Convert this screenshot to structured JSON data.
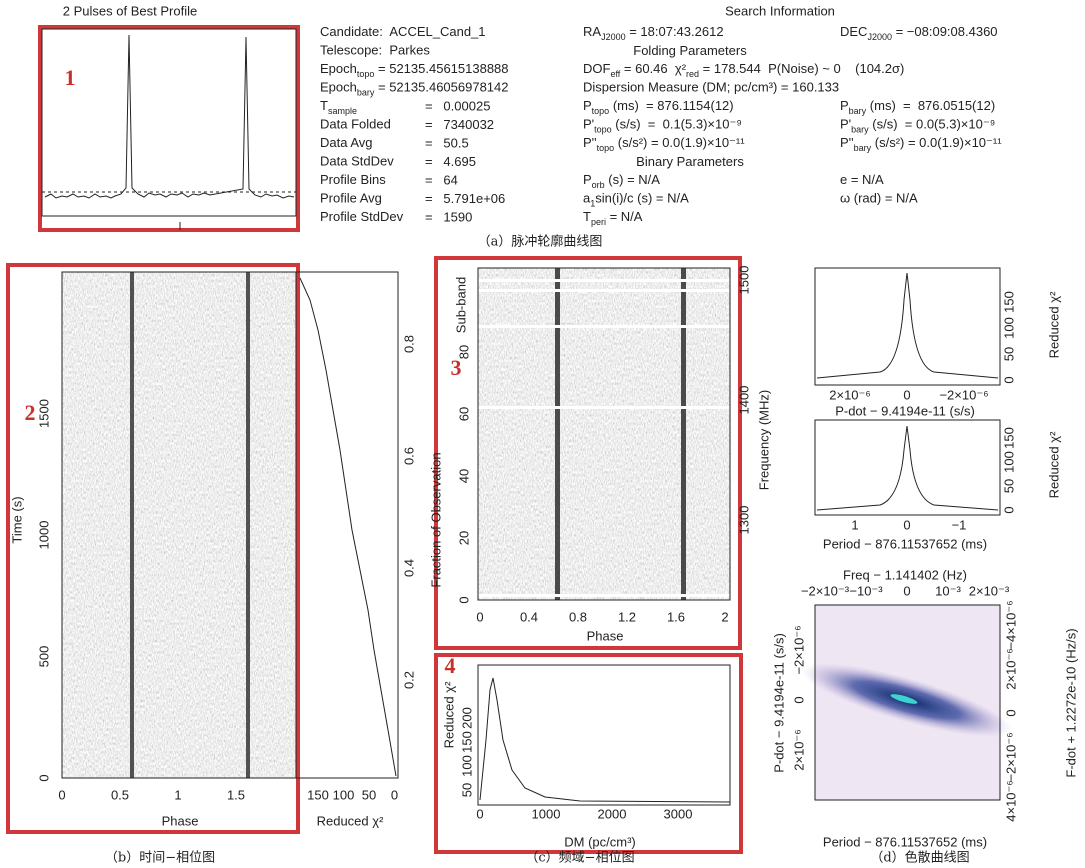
{
  "panel_a": {
    "plot_title": "2 Pulses of Best Profile",
    "marker": "1",
    "info_title": "Search Information",
    "rows": [
      {
        "left": {
          "label": [
            "Candidate:  ACCEL_Cand_1"
          ]
        },
        "middle": [
          "RA",
          {
            "sub": "J2000"
          },
          " = 18:07:43.2612"
        ],
        "right": [
          "DEC",
          {
            "sub": "J2000"
          },
          " = −08:09:08.4360"
        ]
      },
      {
        "left": {
          "label": [
            "Telescope:  Parkes"
          ]
        },
        "heading": "Folding Parameters"
      },
      {
        "left": {
          "label": [
            "Epoch",
            {
              "sub": "topo"
            },
            " = 52135.45615138888"
          ]
        },
        "middle": [
          "DOF",
          {
            "sub": "eff"
          },
          " = 60.46  χ²",
          {
            "sub": "red"
          },
          " = 178.544  P(Noise) ~ 0    (104.2σ)"
        ]
      },
      {
        "left": {
          "label": [
            "Epoch",
            {
              "sub": "bary"
            },
            " = 52135.46056978142"
          ]
        },
        "middle": [
          "Dispersion Measure (DM; pc/cm³) = 160.133"
        ]
      },
      {
        "left": {
          "label": [
            "T",
            {
              "sub": "sample"
            }
          ],
          "value": "=   0.00025"
        },
        "middle": [
          "P",
          {
            "sub": "topo"
          },
          " (ms)  = 876.1154(12)"
        ],
        "right": [
          "P",
          {
            "sub": "bary"
          },
          " (ms)  =  876.0515(12)"
        ]
      },
      {
        "left": {
          "label": [
            "Data Folded"
          ],
          "value": "=   7340032"
        },
        "middle": [
          "P'",
          {
            "sub": "topo"
          },
          " (s/s)  =  0.1(5.3)×10⁻⁹"
        ],
        "right": [
          "P'",
          {
            "sub": "bary"
          },
          " (s/s)  = 0.0(5.3)×10⁻⁹"
        ]
      },
      {
        "left": {
          "label": [
            "Data Avg"
          ],
          "value": "=   50.5"
        },
        "middle": [
          "P''",
          {
            "sub": "topo"
          },
          " (s/s²) = 0.0(1.9)×10⁻¹¹"
        ],
        "right": [
          "P''",
          {
            "sub": "bary"
          },
          " (s/s²) = 0.0(1.9)×10⁻¹¹"
        ]
      },
      {
        "left": {
          "label": [
            "Data StdDev"
          ],
          "value": "=   4.695"
        },
        "heading": "Binary Parameters"
      },
      {
        "left": {
          "label": [
            "Profile Bins"
          ],
          "value": "=   64"
        },
        "middle": [
          "P",
          {
            "sub": "orb"
          },
          " (s) = N/A"
        ],
        "right": [
          "e = N/A"
        ]
      },
      {
        "left": {
          "label": [
            "Profile Avg"
          ],
          "value": "=   5.791e+06"
        },
        "middle": [
          "a",
          {
            "sub": "1"
          },
          "sin(i)/c (s) = N/A"
        ],
        "right": [
          "ω (rad) = N/A"
        ]
      },
      {
        "left": {
          "label": [
            "Profile StdDev"
          ],
          "value": "=   1590"
        },
        "middle": [
          "T",
          {
            "sub": "peri"
          },
          " = N/A"
        ]
      }
    ],
    "caption": "（a）脉冲轮廓曲线图"
  },
  "panel_b": {
    "marker": "2",
    "x_label": "Phase",
    "x_ticks": [
      "0",
      "0.5",
      "1",
      "1.5"
    ],
    "y_label": "Time (s)",
    "y_ticks": [
      "0",
      "500",
      "1000",
      "1500"
    ],
    "chi_ticks": [
      "150",
      "100",
      "50",
      "0"
    ],
    "chi_label": "Reduced χ²",
    "fraction_label": "Fraction of Observation",
    "fraction_ticks": [
      "0.2",
      "0.4",
      "0.6",
      "0.8"
    ],
    "caption": "（b）时间−相位图"
  },
  "panel_c": {
    "marker": "3",
    "x_label": "Phase",
    "x_ticks": [
      "0",
      "0.4",
      "0.8",
      "1.2",
      "1.6",
      "2"
    ],
    "y_label": "Sub-band",
    "y_ticks": [
      "0",
      "20",
      "40",
      "60",
      "80"
    ],
    "freq_label": "Frequency (MHz)",
    "freq_ticks": [
      "1300",
      "1400",
      "1500"
    ],
    "caption": "（c）频域−相位图"
  },
  "panel_dm": {
    "marker": "4",
    "x_label": "DM (pc/cm³)",
    "x_ticks": [
      "0",
      "1000",
      "2000",
      "3000"
    ],
    "y_label": "Reduced χ²",
    "y_ticks": [
      "50",
      "100",
      "150",
      "200"
    ]
  },
  "panel_d": {
    "pdot": {
      "x_label": "P-dot − 9.4194e-11 (s/s)",
      "x_ticks": [
        "2×10⁻⁶",
        "0",
        "−2×10⁻⁶"
      ],
      "y_label": "Reduced χ²",
      "y_ticks": [
        "0",
        "50",
        "100",
        "150"
      ]
    },
    "period": {
      "x_label": "Period − 876.11537652 (ms)",
      "x_ticks": [
        "1",
        "0",
        "−1"
      ],
      "y_label": "Reduced χ²",
      "y_ticks": [
        "0",
        "50",
        "100",
        "150"
      ]
    },
    "map": {
      "top_label": "Freq − 1.141402 (Hz)",
      "top_ticks": [
        "−2×10⁻³",
        "−10⁻³",
        "0",
        "10⁻³",
        "2×10⁻³"
      ],
      "x_label": "Period − 876.11537652 (ms)",
      "y_label": "P-dot − 9.4194e-11 (s/s)",
      "y_ticks": [
        "2×10⁻⁶",
        "0",
        "−2×10⁻⁶"
      ],
      "right_label": "F-dot + 1.2272e-10 (Hz/s)",
      "right_ticks": [
        "−4×10⁻⁶",
        "2×10⁻⁶",
        "0",
        "−2×10⁻⁶",
        "4×10⁻⁶"
      ]
    },
    "caption": "（d）色散曲线图"
  }
}
